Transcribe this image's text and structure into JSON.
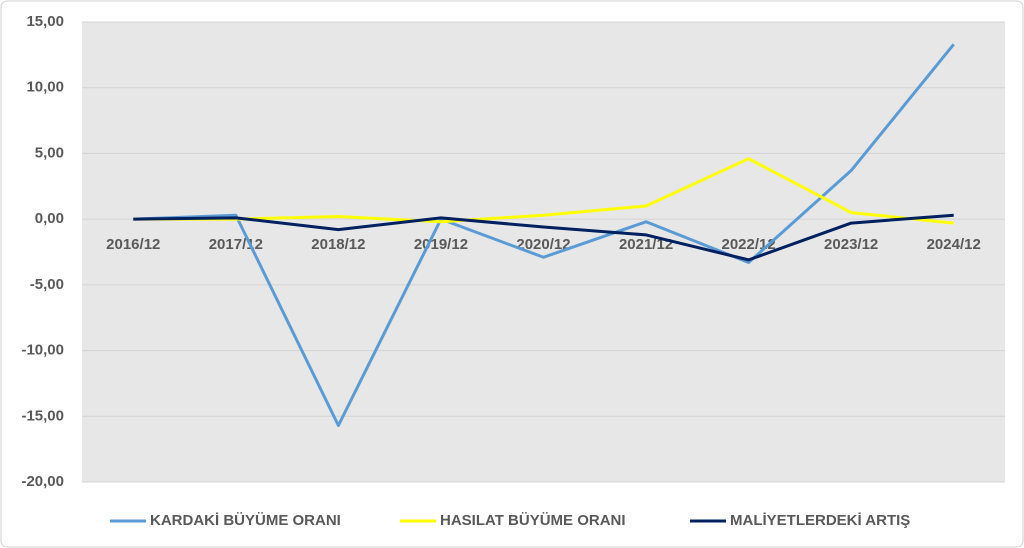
{
  "chart_data": {
    "type": "line",
    "categories": [
      "2016/12",
      "2017/12",
      "2018/12",
      "2019/12",
      "2020/12",
      "2021/12",
      "2022/12",
      "2023/12",
      "2024/12"
    ],
    "series": [
      {
        "name": "KARDAKİ BÜYÜME ORANI",
        "color": "#5b9bd5",
        "values": [
          0.0,
          0.3,
          -15.7,
          0.0,
          -2.9,
          -0.2,
          -3.3,
          3.7,
          13.3
        ]
      },
      {
        "name": "HASILAT BÜYÜME ORANI",
        "color": "#ffff00",
        "values": [
          0.0,
          0.0,
          0.2,
          -0.2,
          0.3,
          1.0,
          4.6,
          0.5,
          -0.3
        ]
      },
      {
        "name": "MALİYETLERDEKİ ARTIŞ",
        "color": "#002060",
        "values": [
          0.0,
          0.1,
          -0.8,
          0.1,
          -0.6,
          -1.2,
          -3.1,
          -0.3,
          0.3
        ]
      }
    ],
    "ylim": [
      -20,
      15
    ],
    "yticks": [
      {
        "value": -20,
        "label": "-20,00"
      },
      {
        "value": -15,
        "label": "-15,00"
      },
      {
        "value": -10,
        "label": "-10,00"
      },
      {
        "value": -5,
        "label": "-5,00"
      },
      {
        "value": 0,
        "label": "0,00"
      },
      {
        "value": 5,
        "label": "5,00"
      },
      {
        "value": 10,
        "label": "10,00"
      },
      {
        "value": 15,
        "label": "15,00"
      }
    ],
    "grid": true
  }
}
